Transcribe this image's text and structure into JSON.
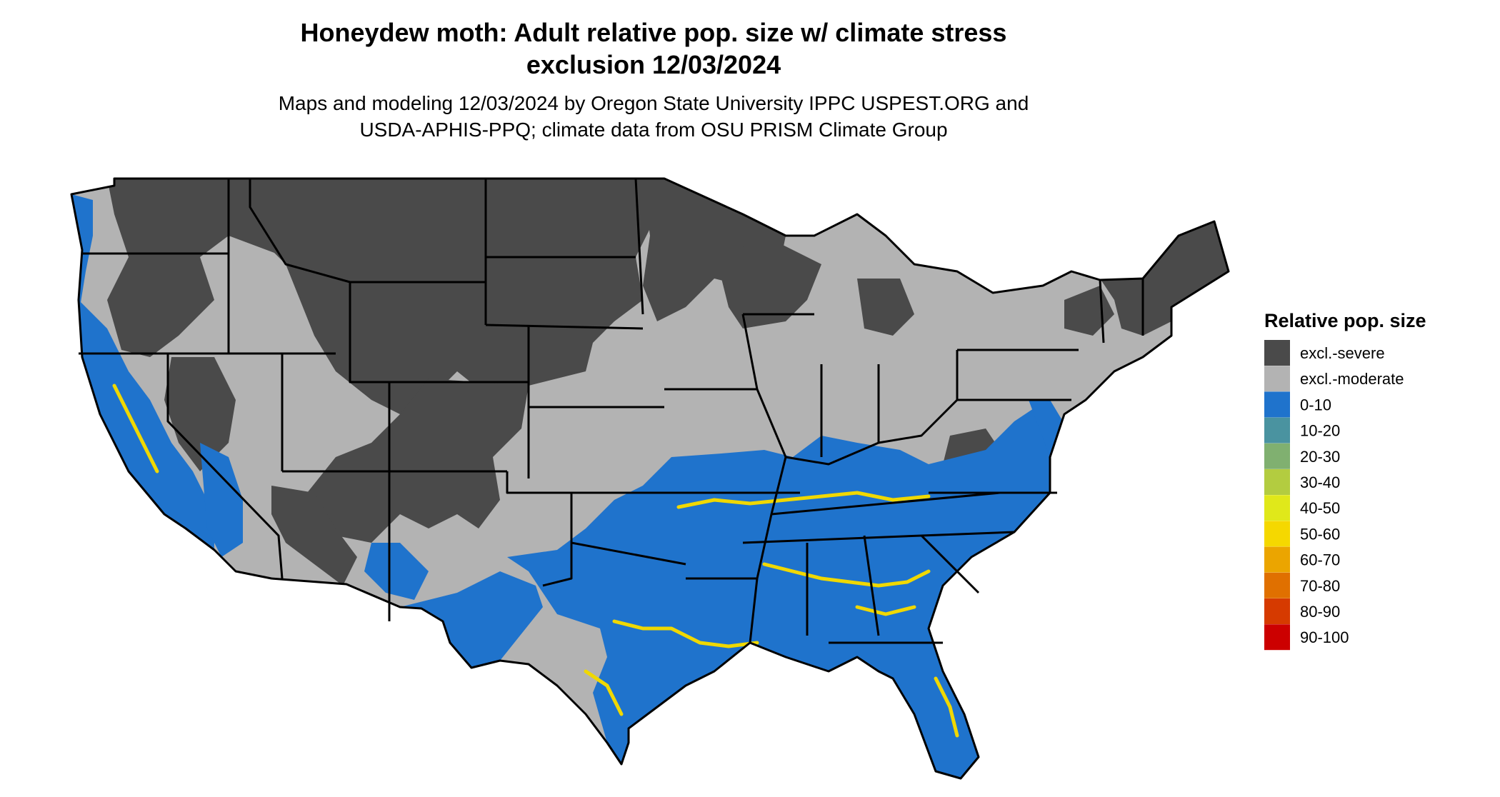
{
  "title": {
    "line1": "Honeydew moth: Adult relative pop. size w/ climate stress",
    "line2": "exclusion 12/03/2024"
  },
  "subtitle": {
    "line1": "Maps and modeling 12/03/2024 by Oregon State University IPPC USPEST.ORG and",
    "line2": "USDA-APHIS-PPQ; climate data from OSU PRISM Climate Group"
  },
  "legend": {
    "title": "Relative pop. size",
    "items": [
      {
        "label": "excl.-severe",
        "color": "#4a4a4a"
      },
      {
        "label": "excl.-moderate",
        "color": "#b3b3b3"
      },
      {
        "label": "0-10",
        "color": "#1f73cc"
      },
      {
        "label": "10-20",
        "color": "#4a93a0"
      },
      {
        "label": "20-30",
        "color": "#80b070"
      },
      {
        "label": "30-40",
        "color": "#b3cc40"
      },
      {
        "label": "40-50",
        "color": "#e0e81a"
      },
      {
        "label": "50-60",
        "color": "#f5d800"
      },
      {
        "label": "60-70",
        "color": "#eba500"
      },
      {
        "label": "70-80",
        "color": "#e07000"
      },
      {
        "label": "80-90",
        "color": "#d63a00"
      },
      {
        "label": "90-100",
        "color": "#cc0000"
      }
    ]
  },
  "colors": {
    "severe": "#4a4a4a",
    "moderate": "#b3b3b3",
    "low": "#1f73cc",
    "high": "#f0d800",
    "borders": "#000000",
    "background": "#ffffff"
  }
}
